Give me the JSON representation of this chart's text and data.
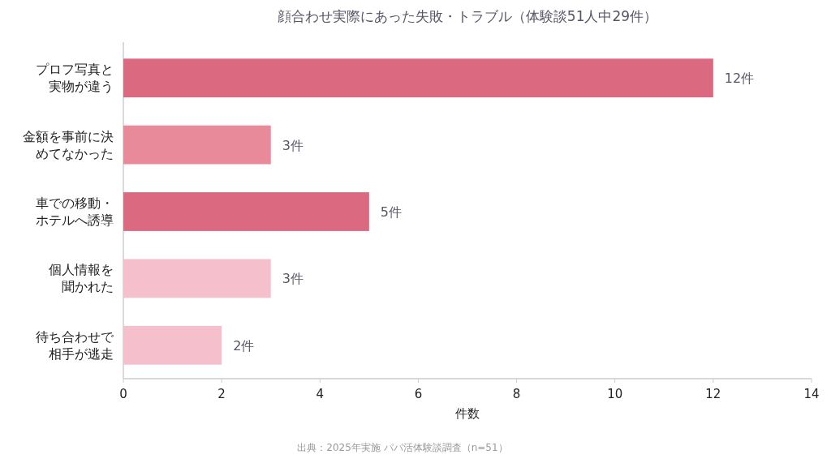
{
  "chart_data": {
    "type": "bar",
    "orientation": "horizontal",
    "title": "顔合わせ実際にあった失敗・トラブル（体験談51人中29件）",
    "categories": [
      "プロフ写真と実物が違う",
      "金額を事前に決めてなかった",
      "車での移動・ホテルへ誘導",
      "個人情報を聞かれた",
      "待ち合わせで相手が逃走"
    ],
    "values": [
      12,
      3,
      5,
      3,
      2
    ],
    "colors": [
      "#db6a80",
      "#e88a9a",
      "#db6a80",
      "#f5bfcc",
      "#f5bfcc"
    ],
    "value_labels": [
      "12件",
      "3件",
      "5件",
      "3件",
      "2件"
    ],
    "xlim": [
      0,
      14
    ],
    "xticks": [
      0,
      2,
      4,
      6,
      8,
      10,
      12,
      14
    ],
    "xlabel": "件数",
    "annotations": [
      "出典：2025年実施 パパ活体験談調査（n=51）"
    ]
  }
}
